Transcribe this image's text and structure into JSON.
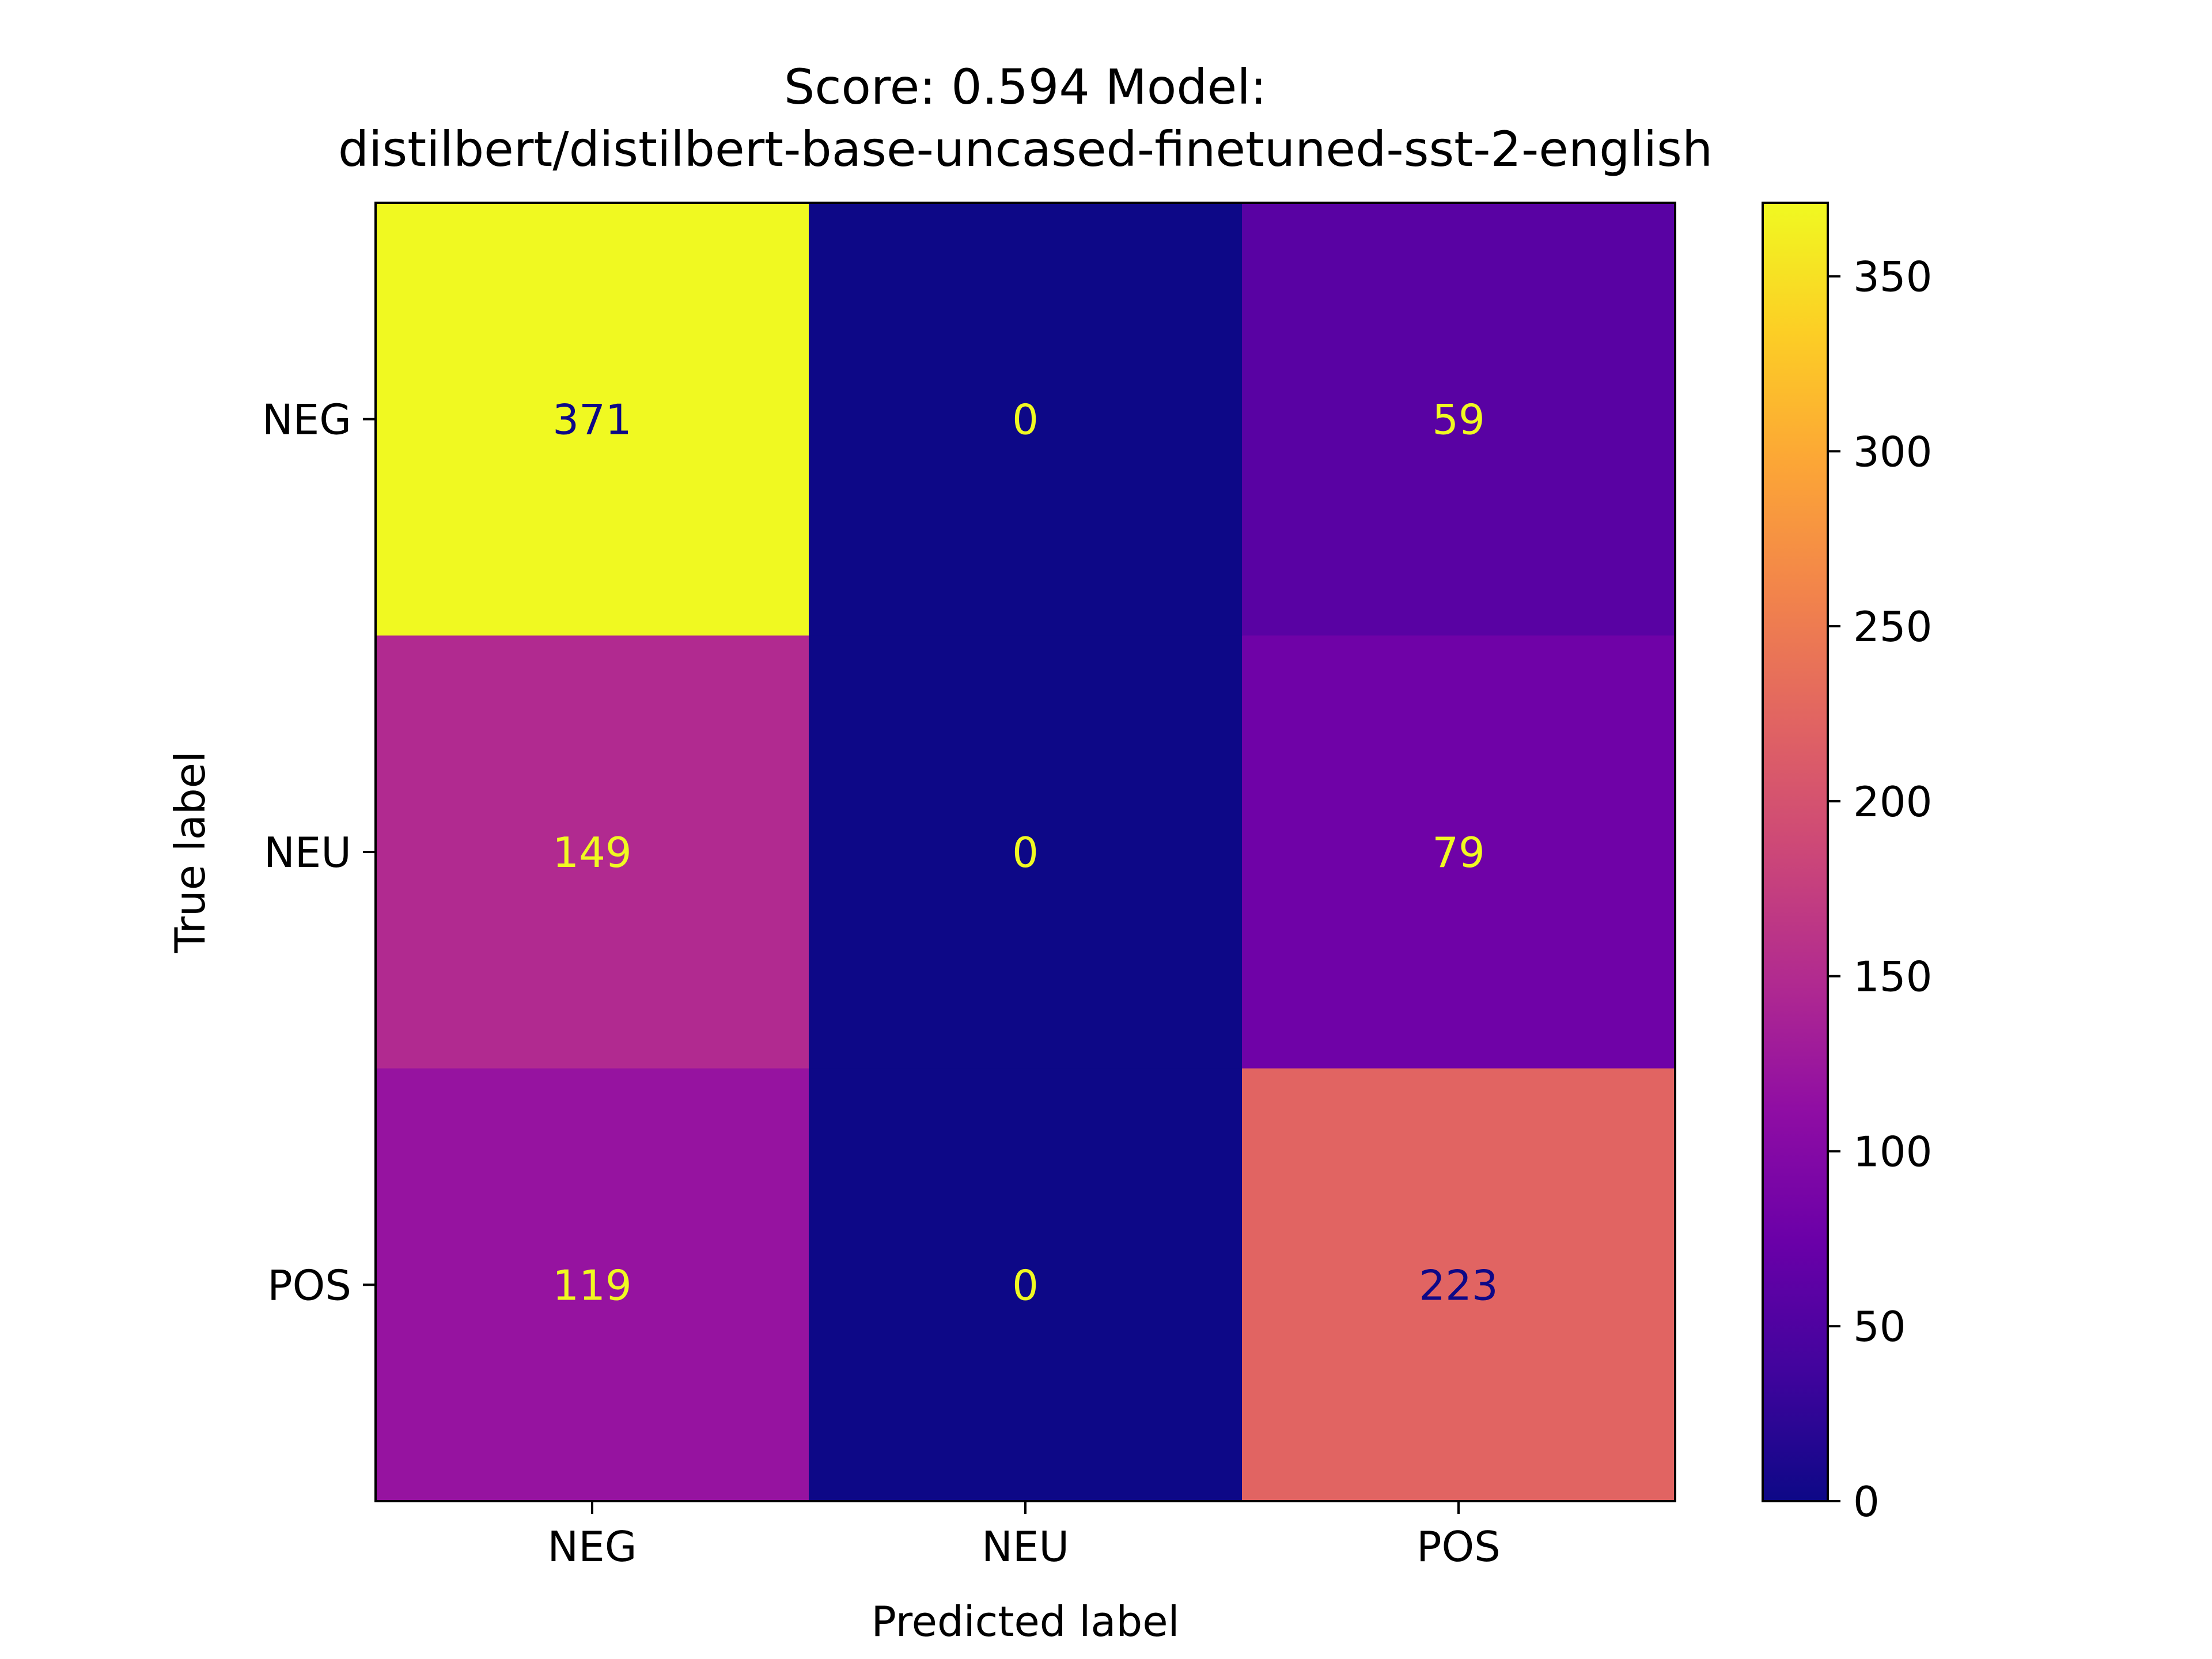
{
  "chart_data": {
    "type": "heatmap",
    "title_lines": [
      "Score: 0.594 Model:",
      "distilbert/distilbert-base-uncased-finetuned-sst-2-english"
    ],
    "xlabel": "Predicted label",
    "ylabel": "True label",
    "x_categories": [
      "NEG",
      "NEU",
      "POS"
    ],
    "y_categories": [
      "NEG",
      "NEU",
      "POS"
    ],
    "matrix": [
      [
        371,
        0,
        59
      ],
      [
        149,
        0,
        79
      ],
      [
        119,
        0,
        223
      ]
    ],
    "colormap": "plasma",
    "colorbar": {
      "range": [
        0,
        371
      ],
      "ticks": [
        "0",
        "50",
        "100",
        "150",
        "200",
        "250",
        "300",
        "350"
      ]
    },
    "grid": false,
    "text_colors": {
      "on_dark": "#f0f921",
      "on_light": "#0d0887"
    }
  }
}
